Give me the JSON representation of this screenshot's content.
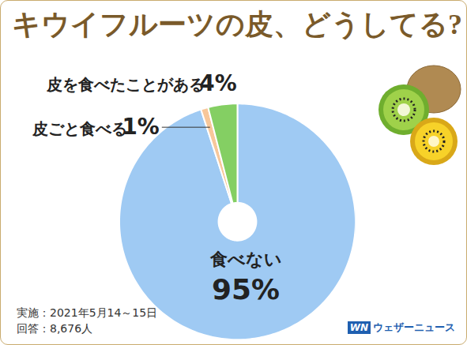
{
  "chart_data": {
    "type": "pie",
    "title": "キウイフルーツの皮、どうしてる?",
    "categories": [
      "食べない",
      "皮ごと食べる",
      "皮を食べたことがある"
    ],
    "values": [
      95,
      1,
      4
    ],
    "value_labels": [
      "95%",
      "1%",
      "4%"
    ],
    "colors": [
      "#9fcaf3",
      "#f7c79a",
      "#84cf63"
    ],
    "data_labels": true,
    "tick_labels": false,
    "annotations": [
      "実施：2021年5月14～15日",
      "回答：8,676人"
    ],
    "source": "ウェザーニュース",
    "source_logo": "WN"
  }
}
